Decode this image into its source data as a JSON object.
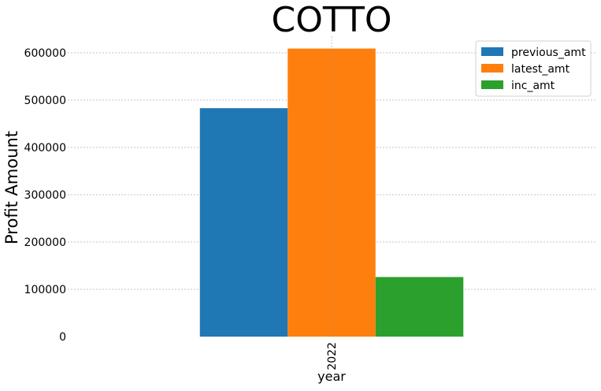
{
  "chart_data": {
    "type": "bar",
    "title": "COTTO",
    "xlabel": "year",
    "ylabel": "Profit Amount",
    "categories": [
      "2022"
    ],
    "series": [
      {
        "name": "previous_amt",
        "values": [
          483000
        ],
        "color": "#1f77b4"
      },
      {
        "name": "latest_amt",
        "values": [
          609000
        ],
        "color": "#ff7f0e"
      },
      {
        "name": "inc_amt",
        "values": [
          126000
        ],
        "color": "#2ca02c"
      }
    ],
    "yticks": [
      "0",
      "100000",
      "200000",
      "300000",
      "400000",
      "500000",
      "600000"
    ],
    "ylim": [
      0,
      640000
    ],
    "grid": true,
    "legend_position": "top-right"
  }
}
